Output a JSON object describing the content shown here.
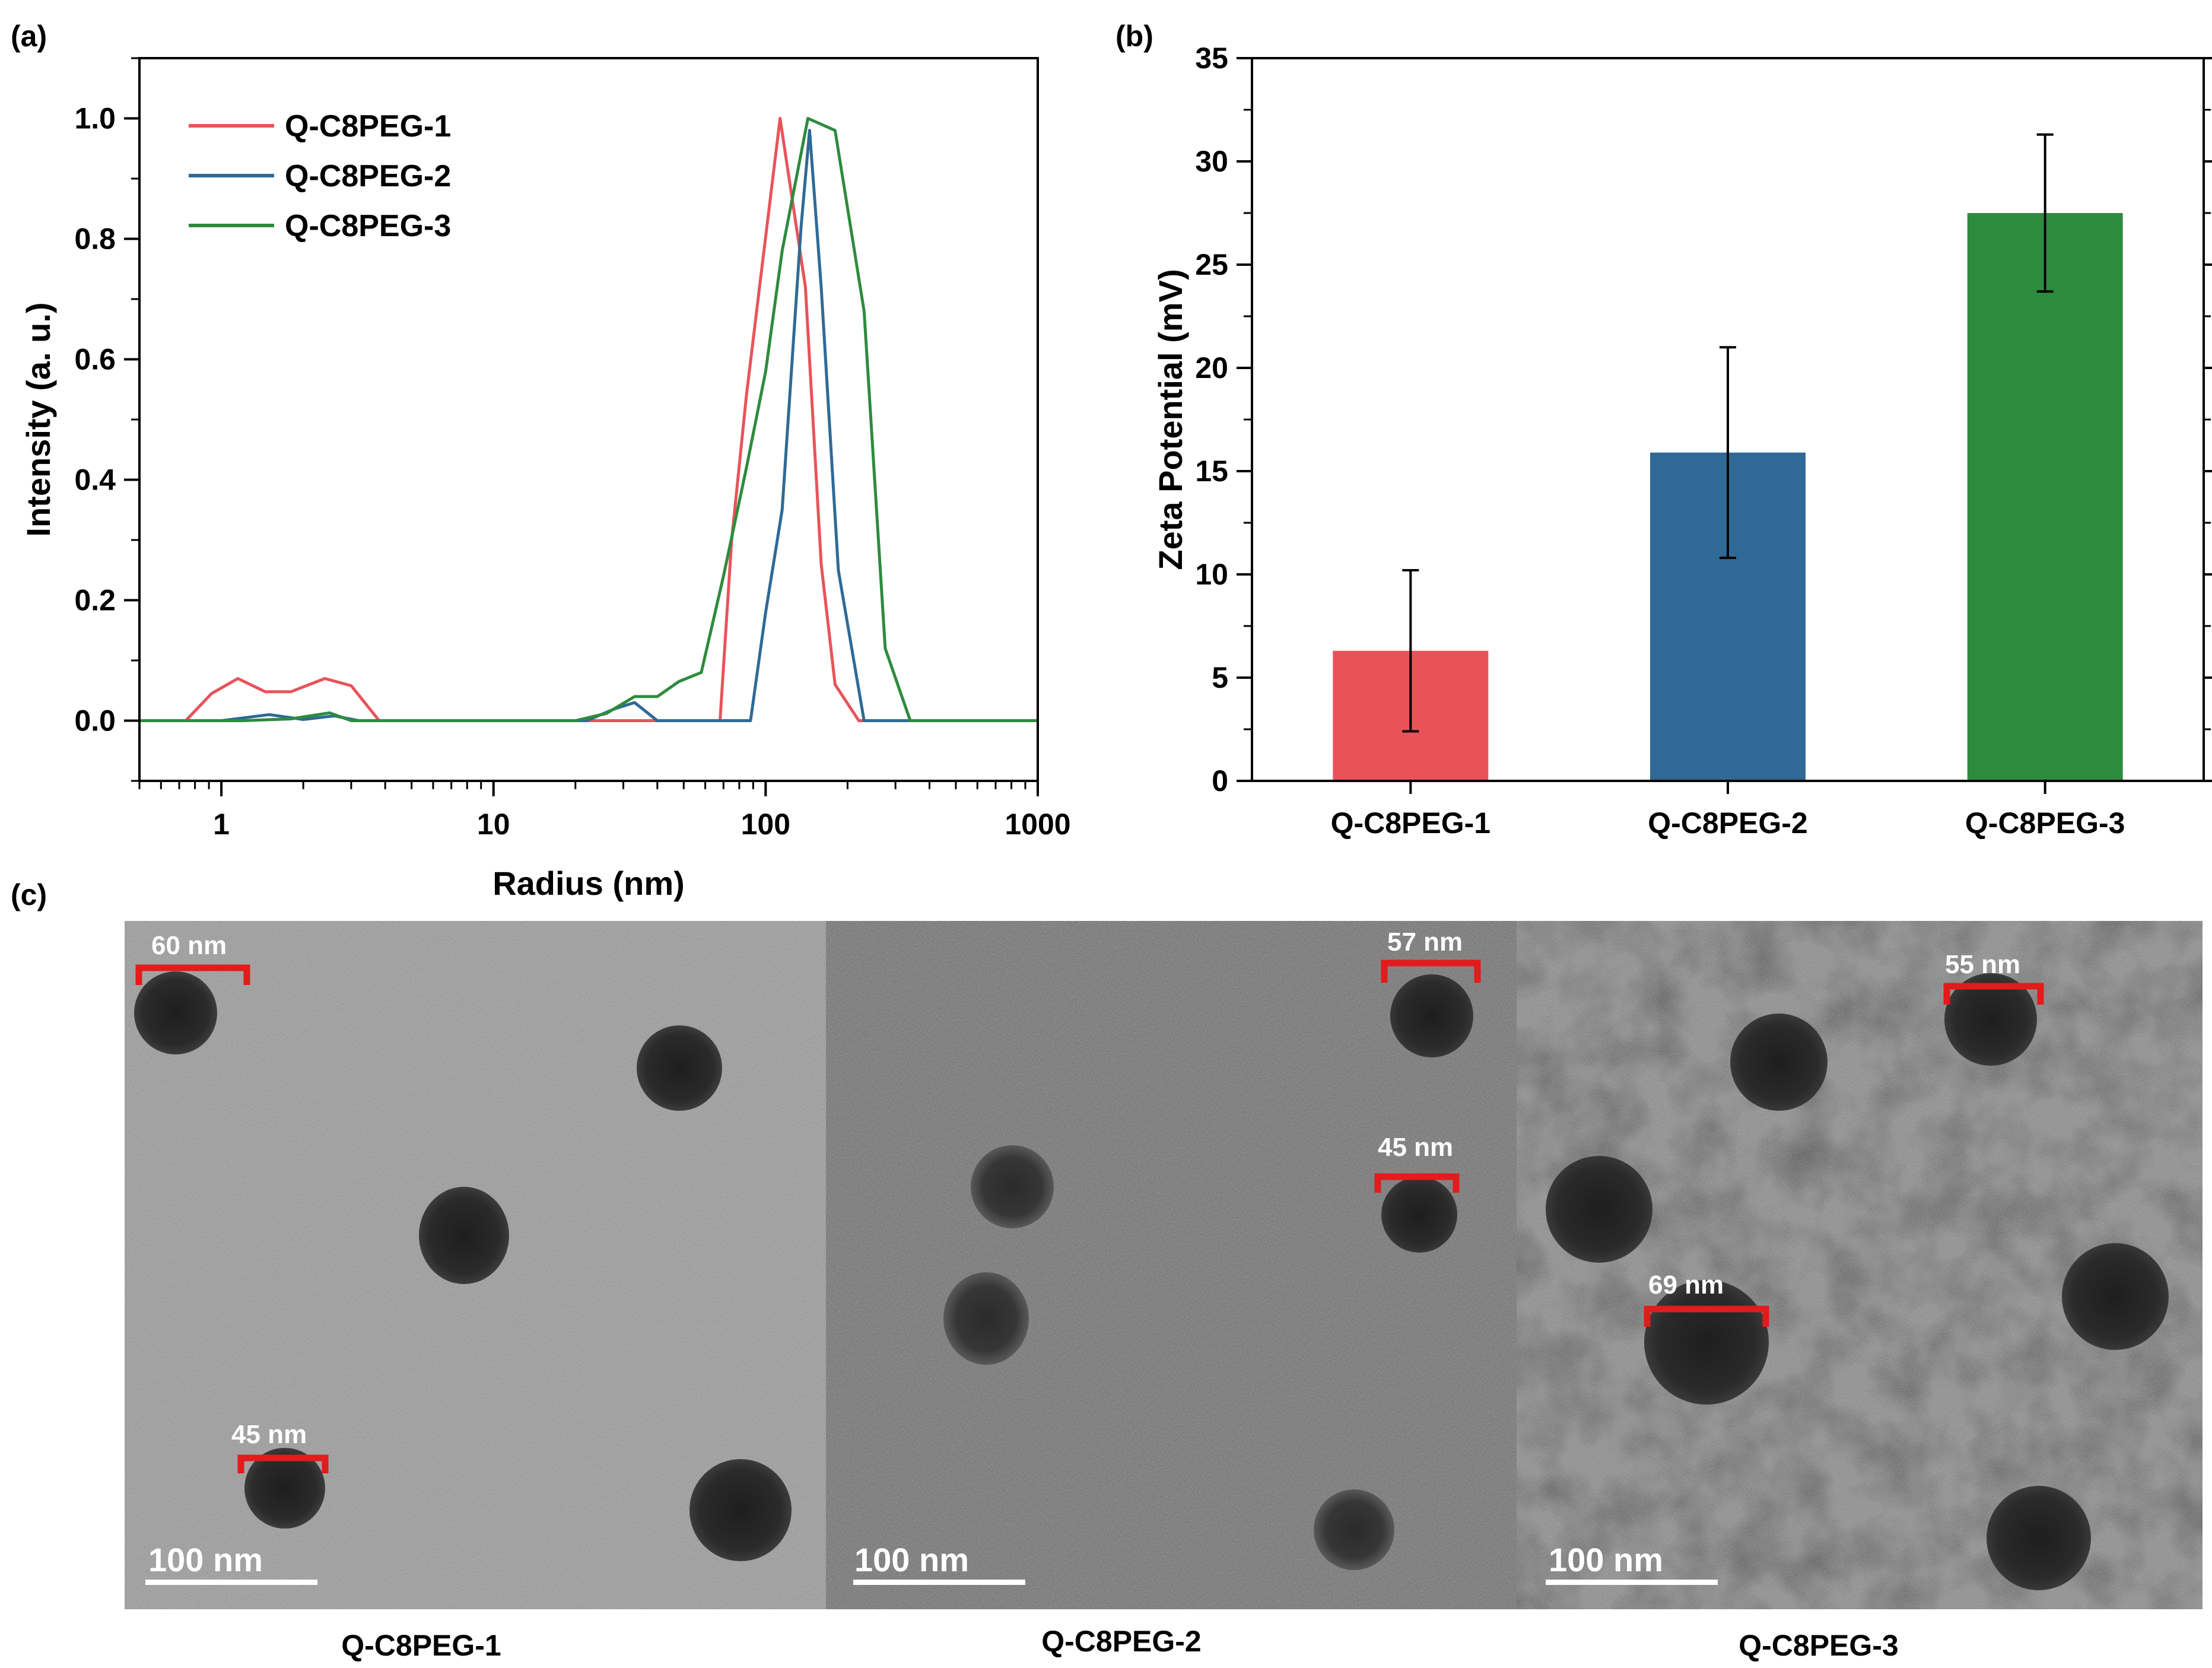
{
  "panels": {
    "a_label": "(a)",
    "b_label": "(b)",
    "c_label": "(c)"
  },
  "chart_data": [
    {
      "type": "line",
      "xscale": "log",
      "xlabel": "Radius (nm)",
      "ylabel": "Intensity (a. u.)",
      "xlim": [
        0.5,
        1000
      ],
      "ylim": [
        -0.1,
        1.1
      ],
      "xticks": [
        1,
        10,
        100,
        1000
      ],
      "xtick_labels": [
        "1",
        "10",
        "100",
        "1000"
      ],
      "yticks": [
        0.0,
        0.2,
        0.4,
        0.6,
        0.8,
        1.0
      ],
      "ytick_labels": [
        "0.0",
        "0.2",
        "0.4",
        "0.6",
        "0.8",
        "1.0"
      ],
      "legend_position": "top-left",
      "grid": false,
      "series": [
        {
          "name": "Q-C8PEG-1",
          "color": "#e8535a",
          "x": [
            0.5,
            0.74,
            0.92,
            1.15,
            1.45,
            1.8,
            2.4,
            3.0,
            3.8,
            25,
            37,
            68,
            75,
            85,
            95,
            113,
            140,
            160,
            180,
            220,
            1000
          ],
          "y": [
            0,
            0,
            0.045,
            0.07,
            0.048,
            0.048,
            0.07,
            0.058,
            0,
            0,
            0,
            0,
            0.3,
            0.54,
            0.72,
            1.0,
            0.72,
            0.26,
            0.06,
            0,
            0
          ]
        },
        {
          "name": "Q-C8PEG-2",
          "color": "#2f6a96",
          "x": [
            0.5,
            1.0,
            1.5,
            2.0,
            2.6,
            3.2,
            22,
            28,
            33,
            40,
            88,
            100,
            115,
            135,
            145,
            160,
            185,
            230,
            1000
          ],
          "y": [
            0,
            0,
            0.01,
            0.002,
            0.008,
            0,
            0,
            0.02,
            0.03,
            0,
            0,
            0.18,
            0.35,
            0.82,
            0.98,
            0.72,
            0.25,
            0,
            0
          ]
        },
        {
          "name": "Q-C8PEG-3",
          "color": "#2e8b3e",
          "x": [
            0.5,
            1.2,
            1.8,
            2.5,
            3.0,
            20,
            26,
            33,
            40,
            48,
            58,
            70,
            85,
            100,
            115,
            143,
            180,
            230,
            275,
            340,
            1000
          ],
          "y": [
            0,
            0,
            0.003,
            0.013,
            0,
            0,
            0.012,
            0.04,
            0.04,
            0.065,
            0.08,
            0.24,
            0.42,
            0.58,
            0.78,
            1.0,
            0.98,
            0.68,
            0.12,
            0,
            0
          ]
        }
      ]
    },
    {
      "type": "bar",
      "xlabel": "",
      "ylabel": "Zeta Potential (mV)",
      "ylim": [
        0,
        35
      ],
      "yticks": [
        0,
        5,
        10,
        15,
        20,
        25,
        30,
        35
      ],
      "ytick_labels": [
        "0",
        "5",
        "10",
        "15",
        "20",
        "25",
        "30",
        "35"
      ],
      "categories": [
        "Q-C8PEG-1",
        "Q-C8PEG-2",
        "Q-C8PEG-3"
      ],
      "values": [
        6.3,
        15.9,
        27.5
      ],
      "error_low": [
        2.4,
        10.8,
        23.7
      ],
      "error_high": [
        10.2,
        21.0,
        31.3
      ],
      "colors": [
        "#e8535a",
        "#2f6a96",
        "#2e8b3e"
      ],
      "grid": false
    }
  ],
  "tem": {
    "images": [
      {
        "caption": "Q-C8PEG-1",
        "scale_bar": "100 nm",
        "background": "#9b9b9b",
        "annotations": [
          "60 nm",
          "45 nm"
        ]
      },
      {
        "caption": "Q-C8PEG-2",
        "scale_bar": "100 nm",
        "background": "#717171",
        "annotations": [
          "57 nm",
          "45 nm"
        ]
      },
      {
        "caption": "Q-C8PEG-3",
        "scale_bar": "100 nm",
        "background": "#8d8d8d",
        "annotations": [
          "55 nm",
          "69 nm"
        ]
      }
    ],
    "marker_color": "#e21b1b"
  }
}
